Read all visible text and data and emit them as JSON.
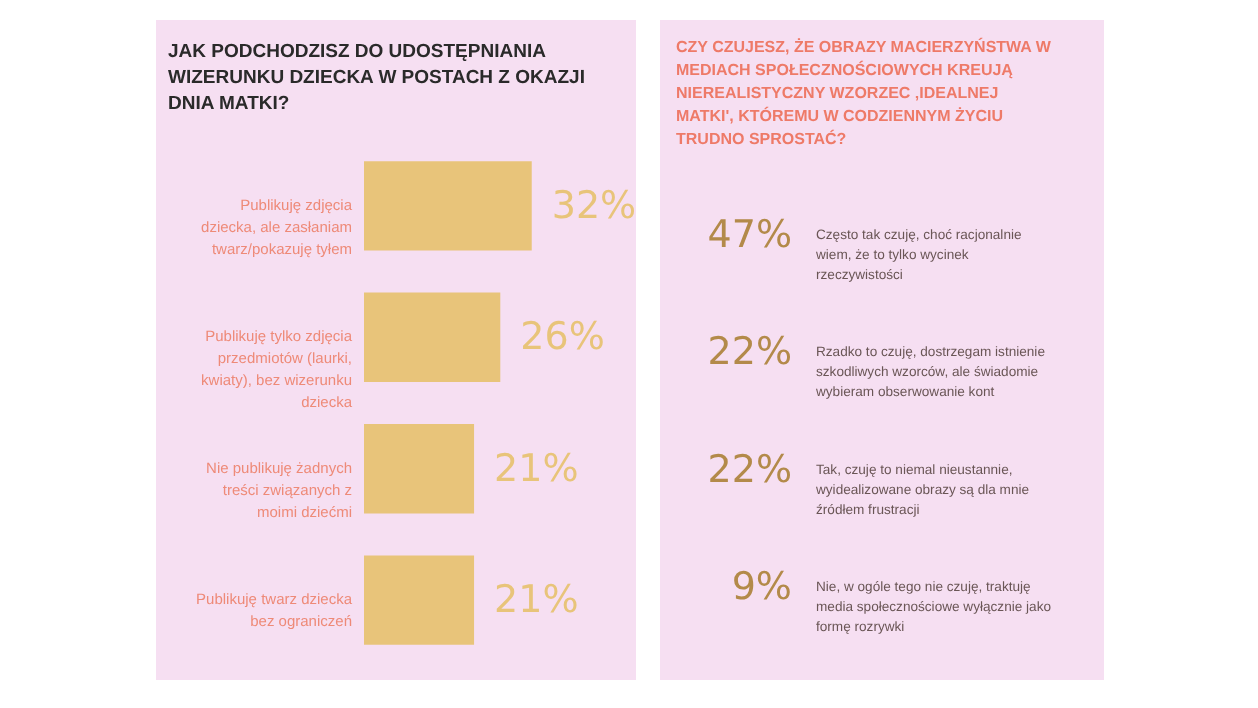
{
  "chart_data": [
    {
      "type": "bar",
      "orientation": "horizontal",
      "title": "JAK PODCHODZISZ DO UDOSTĘPNIANIA WIZERUNKU DZIECKA W POSTACH Z OKAZJI DNIA MATKI?",
      "categories": [
        "Publikuję zdjęcia dziecka, ale zasłaniam twarz/pokazuję tyłem",
        "Publikuję tylko zdjęcia przedmiotów (laurki, kwiaty), bez wizerunku dziecka",
        "Nie publikuję żadnych treści związanych z moimi dziećmi",
        "Publikuję twarz dziecka bez ograniczeń"
      ],
      "values": [
        32,
        26,
        21,
        21
      ],
      "value_labels": [
        "32%",
        "26%",
        "21%",
        "21%"
      ],
      "color": "#e8c47a"
    },
    {
      "type": "other",
      "title": "CZY CZUJESZ, ŻE OBRAZY MACIERZYŃSTWA W MEDIACH SPOŁECZNOŚCIOWYCH KREUJĄ NIEREALISTYCZNY WZORZEC ‚IDEALNEJ MATKI', KTÓREMU W CODZIENNYM ŻYCIU TRUDNO SPROSTAĆ?",
      "categories": [
        "Często tak czuję, choć racjonalnie wiem, że to tylko wycinek rzeczywistości",
        "Rzadko to czuję, dostrzegam istnienie szkodliwych wzorców, ale świadomie wybieram obserwowanie kont",
        "Tak, czuję to niemal nieustannie, wyidealizowane obrazy są dla mnie źródłem frustracji",
        "Nie, w ogóle tego nie czuję, traktuję media społecznościowe wyłącznie jako formę rozrywki"
      ],
      "values": [
        47,
        22,
        22,
        9
      ],
      "value_labels": [
        "47%",
        "22%",
        "22%",
        "9%"
      ]
    }
  ]
}
